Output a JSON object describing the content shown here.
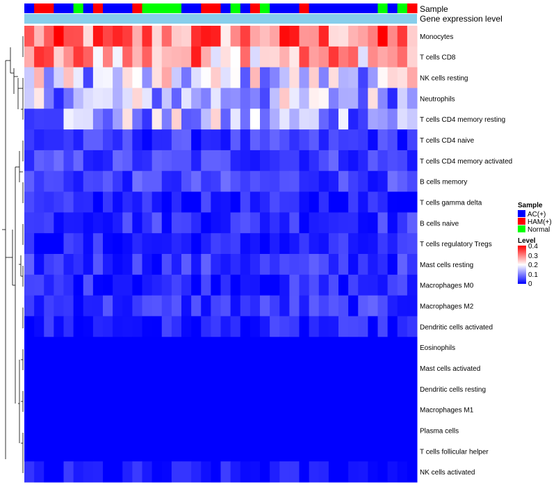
{
  "colors": {
    "low": "#0000ff",
    "mid": "#ffffff",
    "high": "#ff0000",
    "gene_bar": "#87ceeb",
    "dendrogram": "#000000"
  },
  "chart_data": {
    "type": "heatmap",
    "title": "",
    "annotation_labels": {
      "sample": "Sample",
      "gene": "Gene expression level"
    },
    "row_labels": [
      "Monocytes",
      "T cells CD8",
      "NK cells resting",
      "Neutrophils",
      "T cells CD4 memory resting",
      "T cells CD4 naive",
      "T cells CD4 memory activated",
      "B cells memory",
      "T cells gamma delta",
      "B cells naive",
      "T cells regulatory  Tregs",
      "Mast cells resting",
      "Macrophages M0",
      "Macrophages M2",
      "Dendritic cells activated",
      "Eosinophils",
      "Mast cells activated",
      "Dendritic cells resting",
      "Macrophages M1",
      "Plasma cells",
      "T cells follicular helper",
      "NK cells activated"
    ],
    "sample_groups": [
      "A",
      "H",
      "H",
      "A",
      "A",
      "N",
      "A",
      "H",
      "A",
      "A",
      "A",
      "H",
      "N",
      "N",
      "N",
      "N",
      "A",
      "A",
      "H",
      "H",
      "A",
      "N",
      "A",
      "H",
      "N",
      "A",
      "A",
      "A",
      "H",
      "A",
      "A",
      "A",
      "A",
      "A",
      "A",
      "A",
      "N",
      "A",
      "N",
      "H"
    ],
    "legend_sample": {
      "title": "Sample",
      "entries": [
        {
          "key": "A",
          "label": "AC(+)",
          "color": "#0000ff"
        },
        {
          "key": "H",
          "label": "HAM(+)",
          "color": "#ff0000"
        },
        {
          "key": "N",
          "label": "Normal",
          "color": "#00ff00"
        }
      ]
    },
    "legend_level": {
      "title": "Level",
      "min": 0,
      "max": 0.4,
      "ticks": [
        "0.4",
        "0.3",
        "0.2",
        "0.1",
        "0"
      ]
    },
    "row_base_values": [
      0.3,
      0.28,
      0.16,
      0.14,
      0.13,
      0.04,
      0.05,
      0.05,
      0.02,
      0.04,
      0.02,
      0.04,
      0.03,
      0.04,
      0.02,
      0.0,
      0.0,
      0.0,
      0.0,
      0.0,
      0.0,
      0.01
    ]
  }
}
